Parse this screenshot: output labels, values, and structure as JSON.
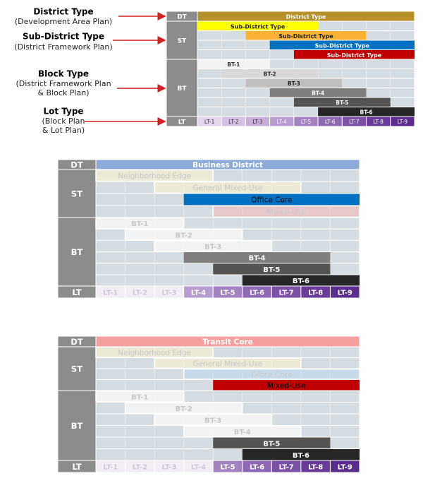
{
  "legend": [
    {
      "title": "District Type",
      "lines": [
        "(Development Area Plan)"
      ]
    },
    {
      "title": "Sub-District Type",
      "lines": [
        "(District Framework Plan)"
      ]
    },
    {
      "title": "Block Type",
      "lines": [
        "(District Framework Plan",
        "& Block Plan)"
      ]
    },
    {
      "title": "Lot Type",
      "lines": [
        "(Block Plan",
        "& Lot Plan)"
      ]
    }
  ],
  "panels": [
    {
      "row_labels": [
        "DT",
        "ST",
        "BT",
        "LT"
      ],
      "district": "District Type",
      "sub_districts": [
        "Sub-District Type",
        "Sub-District Type",
        "Sub-District Type",
        "Sub-District Type"
      ],
      "blocks": [
        "BT-1",
        "BT-2",
        "BT-3",
        "BT-4",
        "BT-5",
        "BT-6"
      ],
      "lots": [
        "LT-1",
        "LT-2",
        "LT-3",
        "LT-4",
        "LT-5",
        "LT-6",
        "LT-7",
        "LT-8",
        "LT-9"
      ]
    },
    {
      "row_labels": [
        "DT",
        "ST",
        "BT",
        "LT"
      ],
      "district": "Business District",
      "sub_districts": [
        "Neighborhood Edge",
        "General Mixed-Use",
        "Office Core",
        "Mixed-Use"
      ],
      "blocks": [
        "BT-1",
        "BT-2",
        "BT-3",
        "BT-4",
        "BT-5",
        "BT-6"
      ],
      "lots": [
        "LT-1",
        "LT-2",
        "LT-3",
        "LT-4",
        "LT-5",
        "LT-6",
        "LT-7",
        "LT-8",
        "LT-9"
      ]
    },
    {
      "row_labels": [
        "DT",
        "ST",
        "BT",
        "LT"
      ],
      "district": "Transit Core",
      "sub_districts": [
        "Neighborhood Edge",
        "General Mixed-Use",
        "Office Core",
        "Mixed-Use"
      ],
      "blocks": [
        "BT-1",
        "BT-2",
        "BT-3",
        "BT-4",
        "BT-5",
        "BT-6"
      ],
      "lots": [
        "LT-1",
        "LT-2",
        "LT-3",
        "LT-4",
        "LT-5",
        "LT-6",
        "LT-7",
        "LT-8",
        "LT-9"
      ]
    }
  ]
}
